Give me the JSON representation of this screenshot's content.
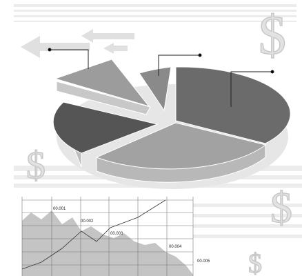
{
  "chart_labels": [
    "00.001",
    "00.002",
    "00.003",
    "00.004",
    "00.005"
  ],
  "dollar_signs": [
    "$",
    "$",
    "$",
    "$"
  ]
}
